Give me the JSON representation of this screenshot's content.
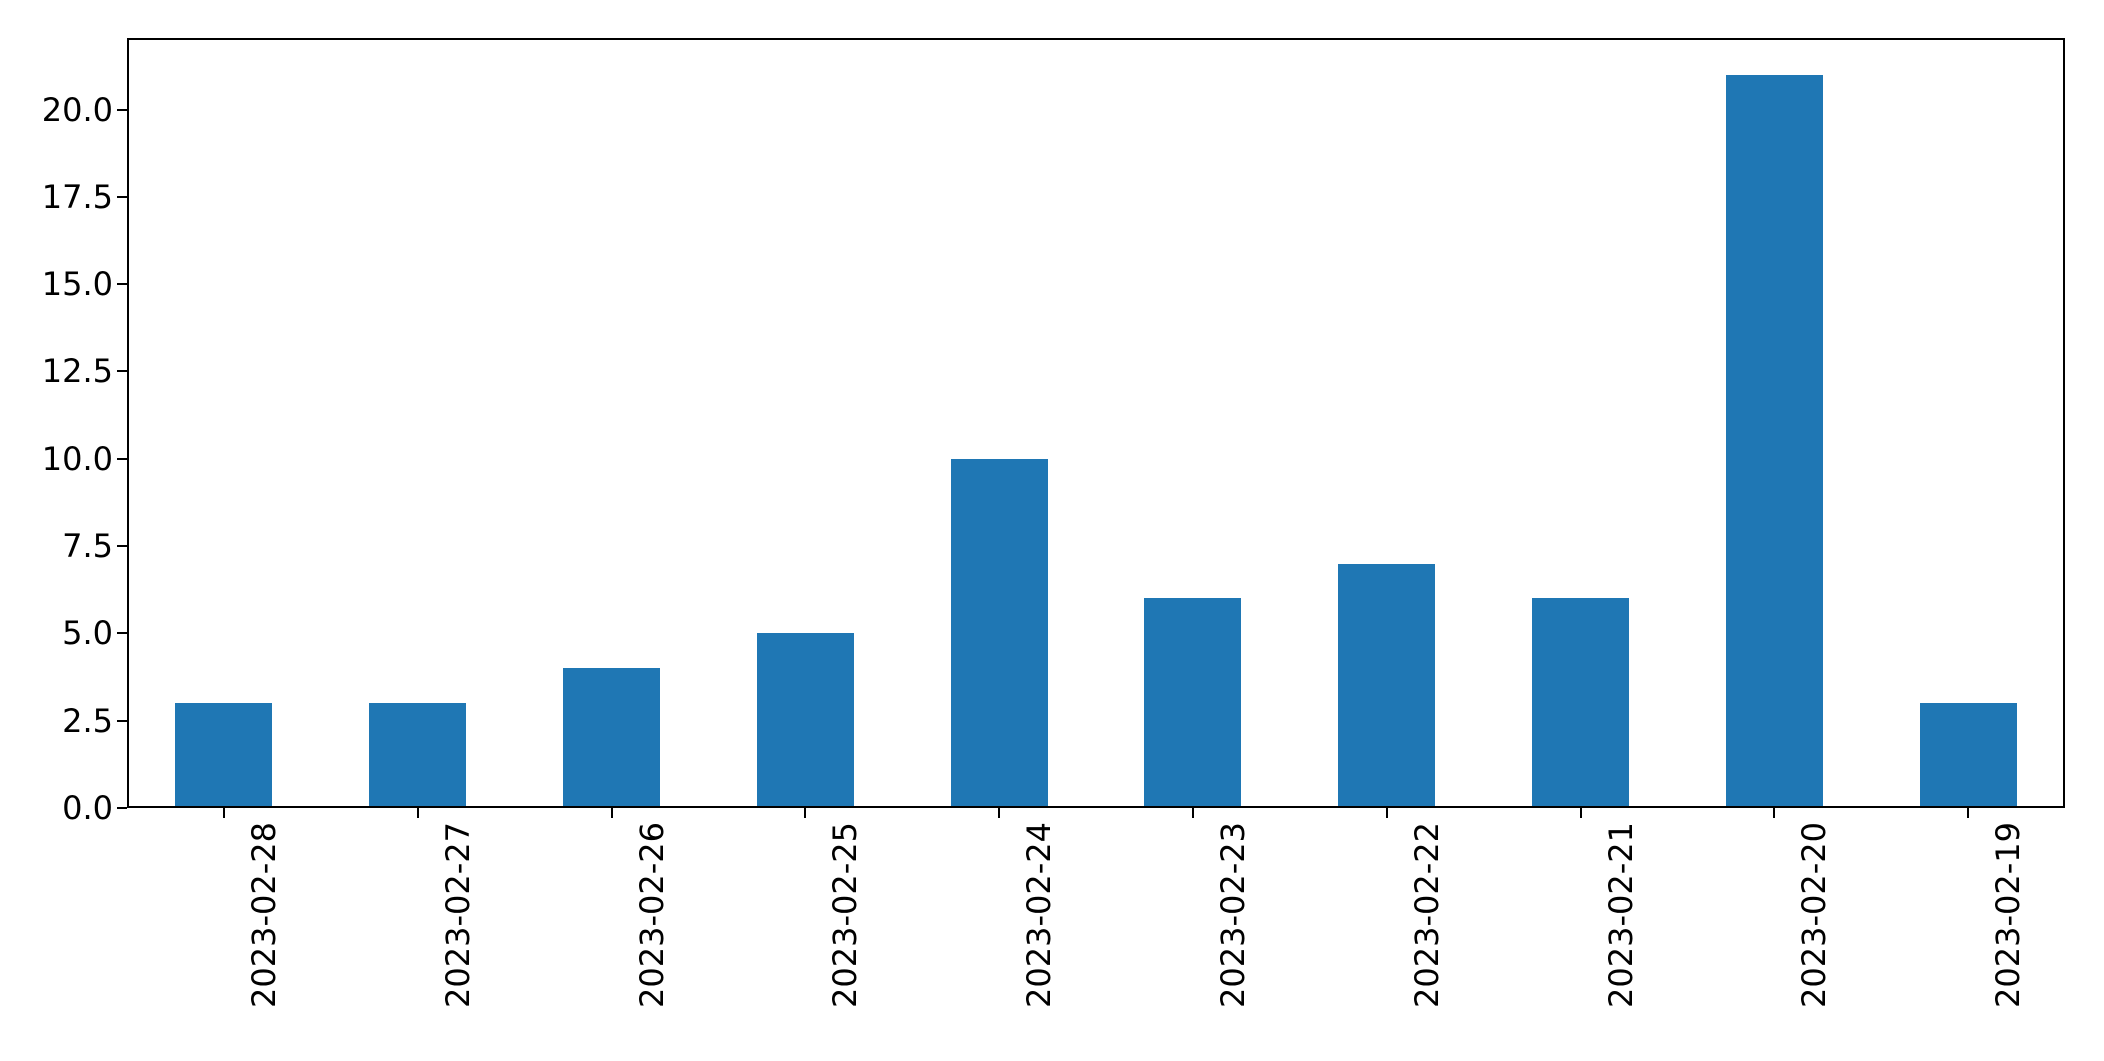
{
  "chart_data": {
    "type": "bar",
    "title": "",
    "xlabel": "",
    "ylabel": "",
    "categories": [
      "2023-02-28",
      "2023-02-27",
      "2023-02-26",
      "2023-02-25",
      "2023-02-24",
      "2023-02-23",
      "2023-02-22",
      "2023-02-21",
      "2023-02-20",
      "2023-02-19"
    ],
    "values": [
      3,
      3,
      4,
      5,
      10,
      6,
      7,
      6,
      21,
      3
    ],
    "ylim": [
      0,
      22.05
    ],
    "yticks": [
      0.0,
      2.5,
      5.0,
      7.5,
      10.0,
      12.5,
      15.0,
      17.5,
      20.0
    ],
    "ytick_labels": [
      "0.0",
      "2.5",
      "5.0",
      "7.5",
      "10.0",
      "12.5",
      "15.0",
      "17.5",
      "20.0"
    ],
    "x_tick_rotation_deg": 90,
    "bar_width_fraction": 0.5,
    "grid": false,
    "legend": null,
    "colors": {
      "bar": "#1f77b4",
      "axis": "#000000",
      "background": "#ffffff"
    }
  }
}
